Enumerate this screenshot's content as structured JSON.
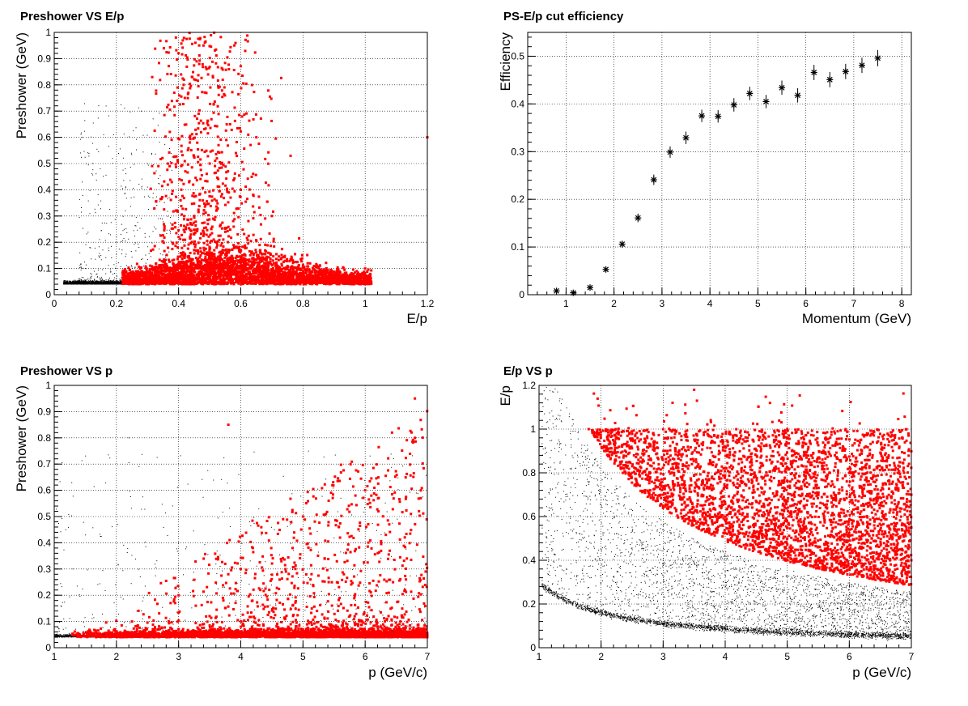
{
  "chart_data": [
    {
      "type": "scatter",
      "title": "Preshower VS E/p",
      "xlabel": "E/p",
      "ylabel": "Preshower (GeV)",
      "xlim": [
        0,
        1.2
      ],
      "ylim": [
        0,
        1
      ],
      "xticks": [
        0,
        0.2,
        0.4,
        0.6,
        0.8,
        1,
        1.2
      ],
      "yticks": [
        0,
        0.1,
        0.2,
        0.3,
        0.4,
        0.5,
        0.6,
        0.7,
        0.8,
        0.9,
        1
      ],
      "grid": true,
      "series": [
        {
          "color": "#000000",
          "marker": "dot",
          "points": [
            [
              0.05,
              0.05
            ],
            [
              0.08,
              0.06
            ],
            [
              0.1,
              0.05
            ],
            [
              0.12,
              0.07
            ],
            [
              0.15,
              0.06
            ],
            [
              0.18,
              0.05
            ],
            [
              0.2,
              0.06
            ],
            [
              0.1,
              0.1
            ],
            [
              0.15,
              0.15
            ],
            [
              0.2,
              0.2
            ],
            [
              0.25,
              0.3
            ],
            [
              0.3,
              0.5
            ],
            [
              0.28,
              0.7
            ]
          ]
        },
        {
          "color": "#ff0000",
          "marker": "square",
          "points": [
            [
              0.25,
              0.05
            ],
            [
              0.3,
              0.08
            ],
            [
              0.4,
              0.1
            ],
            [
              0.5,
              0.12
            ],
            [
              0.6,
              0.1
            ],
            [
              0.7,
              0.08
            ],
            [
              0.8,
              0.07
            ],
            [
              0.9,
              0.06
            ],
            [
              0.45,
              0.3
            ],
            [
              0.5,
              0.5
            ],
            [
              0.42,
              0.75
            ],
            [
              0.48,
              0.95
            ],
            [
              0.6,
              0.4
            ],
            [
              0.7,
              0.3
            ],
            [
              0.65,
              0.6
            ],
            [
              1.0,
              0.1
            ],
            [
              1.2,
              0.6
            ]
          ]
        }
      ]
    },
    {
      "type": "scatter",
      "title": "PS-E/p cut efficiency",
      "xlabel": "Momentum (GeV)",
      "ylabel": "Efficiency",
      "xlim": [
        0.2,
        8.2
      ],
      "ylim": [
        0,
        0.55
      ],
      "xticks": [
        1,
        2,
        3,
        4,
        5,
        6,
        7,
        8
      ],
      "yticks": [
        0,
        0.1,
        0.2,
        0.3,
        0.4,
        0.5
      ],
      "grid": true,
      "series": [
        {
          "color": "#000000",
          "marker": "star",
          "points": [
            [
              0.8,
              0.008
            ],
            [
              1.15,
              0.004
            ],
            [
              1.5,
              0.015
            ],
            [
              1.83,
              0.053
            ],
            [
              2.17,
              0.106
            ],
            [
              2.5,
              0.161
            ],
            [
              2.83,
              0.241
            ],
            [
              3.17,
              0.299
            ],
            [
              3.5,
              0.329
            ],
            [
              3.83,
              0.375
            ],
            [
              4.17,
              0.374
            ],
            [
              4.5,
              0.398
            ],
            [
              4.83,
              0.422
            ],
            [
              5.17,
              0.405
            ],
            [
              5.5,
              0.434
            ],
            [
              5.83,
              0.418
            ],
            [
              6.17,
              0.466
            ],
            [
              6.5,
              0.451
            ],
            [
              6.83,
              0.468
            ],
            [
              7.17,
              0.481
            ],
            [
              7.5,
              0.496
            ]
          ],
          "errors": [
            0.004,
            0.003,
            0.005,
            0.006,
            0.007,
            0.009,
            0.011,
            0.012,
            0.013,
            0.013,
            0.013,
            0.014,
            0.014,
            0.014,
            0.015,
            0.015,
            0.016,
            0.016,
            0.016,
            0.016,
            0.017
          ]
        }
      ]
    },
    {
      "type": "scatter",
      "title": "Preshower VS p",
      "xlabel": "p (GeV/c)",
      "ylabel": "Preshower (GeV)",
      "xlim": [
        1,
        7
      ],
      "ylim": [
        0,
        1
      ],
      "xticks": [
        1,
        2,
        3,
        4,
        5,
        6,
        7
      ],
      "yticks": [
        0,
        0.1,
        0.2,
        0.3,
        0.4,
        0.5,
        0.6,
        0.7,
        0.8,
        0.9,
        1
      ],
      "grid": true,
      "series": [
        {
          "color": "#000000",
          "marker": "dot",
          "points": [
            [
              1.2,
              0.05
            ],
            [
              1.5,
              0.06
            ],
            [
              1.8,
              0.05
            ],
            [
              2.0,
              0.1
            ],
            [
              2.5,
              0.2
            ],
            [
              3.0,
              0.4
            ],
            [
              4.0,
              0.6
            ],
            [
              1.3,
              0.3
            ],
            [
              2.2,
              0.8
            ]
          ]
        },
        {
          "color": "#ff0000",
          "marker": "square",
          "points": [
            [
              1.3,
              0.05
            ],
            [
              2,
              0.06
            ],
            [
              3,
              0.07
            ],
            [
              4,
              0.08
            ],
            [
              5,
              0.07
            ],
            [
              6,
              0.06
            ],
            [
              7,
              0.05
            ],
            [
              3,
              0.2
            ],
            [
              4,
              0.3
            ],
            [
              5,
              0.5
            ],
            [
              6,
              0.6
            ],
            [
              6.8,
              0.8
            ],
            [
              3.8,
              0.85
            ],
            [
              6.8,
              0.95
            ]
          ]
        }
      ]
    },
    {
      "type": "scatter",
      "title": "E/p VS p",
      "xlabel": "p (GeV/c)",
      "ylabel": "E/p",
      "xlim": [
        1,
        7
      ],
      "ylim": [
        0,
        1.2
      ],
      "xticks": [
        1,
        2,
        3,
        4,
        5,
        6,
        7
      ],
      "yticks": [
        0,
        0.2,
        0.4,
        0.6,
        0.8,
        1,
        1.2
      ],
      "grid": true,
      "series": [
        {
          "color": "#000000",
          "marker": "dot",
          "points": [
            [
              1.1,
              0.28
            ],
            [
              2,
              0.15
            ],
            [
              3,
              0.1
            ],
            [
              4,
              0.08
            ],
            [
              5,
              0.06
            ],
            [
              6,
              0.05
            ],
            [
              7,
              0.05
            ],
            [
              1.5,
              0.6
            ],
            [
              2,
              0.5
            ],
            [
              3,
              0.4
            ],
            [
              4,
              0.35
            ],
            [
              5,
              0.3
            ],
            [
              6,
              0.28
            ],
            [
              7,
              0.25
            ]
          ]
        },
        {
          "color": "#ff0000",
          "marker": "square",
          "points": [
            [
              1.8,
              1.0
            ],
            [
              2.5,
              0.8
            ],
            [
              3,
              0.7
            ],
            [
              4,
              0.6
            ],
            [
              5,
              0.5
            ],
            [
              6,
              0.45
            ],
            [
              7,
              0.4
            ],
            [
              4,
              0.9
            ],
            [
              5,
              1.0
            ],
            [
              6,
              0.8
            ],
            [
              7,
              0.7
            ],
            [
              3.5,
              1.18
            ]
          ]
        }
      ]
    }
  ]
}
